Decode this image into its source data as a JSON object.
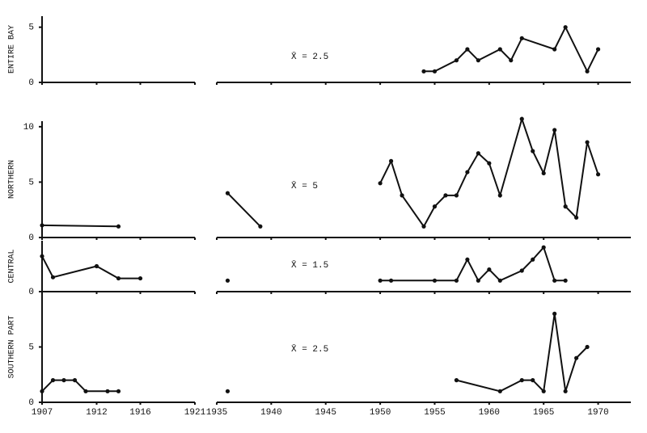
{
  "chart_data": {
    "type": "line",
    "color": "#111111",
    "xlim": [
      1907,
      1973
    ],
    "x_break": [
      1921,
      1935
    ],
    "xticks": [
      1907,
      1912,
      1916,
      1921,
      1935,
      1940,
      1945,
      1950,
      1955,
      1960,
      1965,
      1970
    ],
    "panels": [
      {
        "ylabel": "ENTIRE BAY",
        "annotation": "X̄ = 2.5",
        "ylim": [
          0,
          6
        ],
        "yticks": [
          0,
          5
        ],
        "x": [
          1954,
          1955,
          1957,
          1958,
          1959,
          1961,
          1962,
          1963,
          1966,
          1967,
          1969,
          1970
        ],
        "values": [
          1,
          1,
          2,
          3,
          2,
          3,
          2,
          4,
          3,
          5,
          1,
          3
        ]
      },
      {
        "ylabel": "NORTHERN",
        "annotation": "X̄ = 5",
        "ylim": [
          0,
          10.5
        ],
        "yticks": [
          0,
          5,
          10
        ],
        "x": [
          1907,
          1914,
          null,
          1936,
          1939,
          null,
          1950,
          1951,
          1952,
          1954,
          1955,
          1956,
          1957,
          1958,
          1959,
          1960,
          1961,
          1963,
          1964,
          1965,
          1966,
          1967,
          1968,
          1969,
          1970
        ],
        "values": [
          1.1,
          1.0,
          null,
          4.0,
          1.0,
          null,
          4.9,
          6.9,
          3.8,
          1.0,
          2.8,
          3.8,
          3.8,
          5.9,
          7.6,
          6.7,
          3.8,
          10.7,
          7.8,
          5.8,
          9.7,
          2.8,
          1.8,
          8.6,
          5.7
        ]
      },
      {
        "ylabel": "CENTRAL",
        "annotation": "X̄ = 1.5",
        "ylim": [
          0,
          4.6
        ],
        "yticks": [
          0
        ],
        "x": [
          1907,
          1908,
          1912,
          1914,
          1916,
          null,
          1936,
          null,
          1950,
          1951,
          1955,
          1957,
          1958,
          1959,
          1960,
          1961,
          1963,
          1964,
          1965,
          1966,
          1967
        ],
        "values": [
          3.2,
          1.3,
          2.3,
          1.2,
          1.2,
          null,
          1.0,
          null,
          1.0,
          1.0,
          1.0,
          1.0,
          2.9,
          1.0,
          2.0,
          1.0,
          1.9,
          2.9,
          4.0,
          1.0,
          1.0
        ]
      },
      {
        "ylabel": "SOUTHERN PART",
        "annotation": "X̄ = 2.5",
        "ylim": [
          0,
          10
        ],
        "yticks": [
          0,
          5
        ],
        "x": [
          1907,
          1908,
          1909,
          1910,
          1911,
          1913,
          1914,
          null,
          1936,
          null,
          1957,
          1961,
          1963,
          1964,
          1965,
          1966,
          1967,
          1968,
          1969
        ],
        "values": [
          1,
          2,
          2,
          2,
          1,
          1,
          1,
          null,
          1,
          null,
          2,
          1,
          2,
          2,
          1,
          8,
          1,
          4,
          5
        ]
      }
    ]
  }
}
